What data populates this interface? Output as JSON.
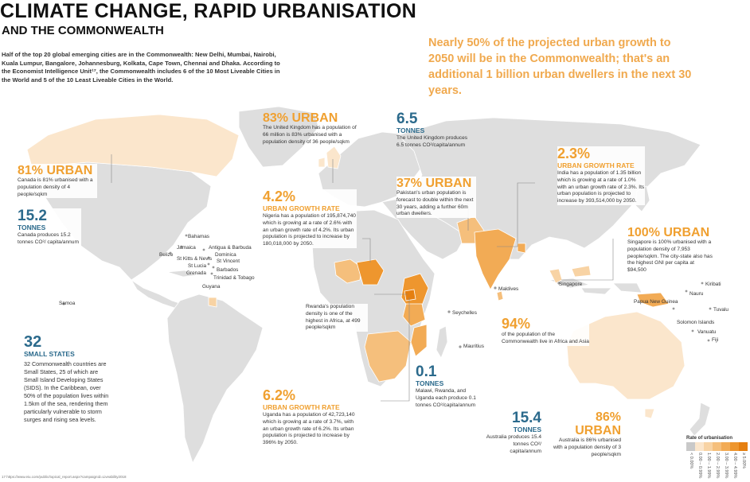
{
  "title": "CLIMATE CHANGE, RAPID URBANISATION",
  "subtitle": "AND THE COMMONWEALTH",
  "intro": "Half of the top 20 global emerging cities are in the Commonwealth: New Delhi, Mumbai, Nairobi, Kuala Lumpur, Bangalore, Johannesburg, Kolkata, Cape Town, Chennai and Dhaka. According to the Economist Intelligence Unit¹⁷, the Commonwealth includes 6 of the 10 Most Liveable Cities in the World and 5 of the 10 Least Liveable Cities in the World.",
  "headline": "Nearly 50% of the projected urban growth to 2050 will be in the Commonwealth; that's an additional 1 billion urban dwellers in the next 30 years.",
  "colors": {
    "map_land": "#dedede",
    "accent_orange": "#f0a030",
    "accent_blue": "#2b6a8c"
  },
  "callouts": {
    "uk_urban": {
      "value": "83% URBAN",
      "text": "The United Kingdom has a population of 66 million is 83% urbanised with a population density of 36 people/sqkm"
    },
    "uk_tonnes": {
      "value": "6.5",
      "label": "TONNES",
      "text": "The United Kingdom produces 6.5 tonnes CO²/capita/annum"
    },
    "canada_urban": {
      "value": "81% URBAN",
      "text": "Canada is 81% urbanised with a population density of 4 people/sqkm"
    },
    "canada_tonnes": {
      "value": "15.2",
      "label": "TONNES",
      "text": "Canada produces 15.2 tonnes CO²/ capita/annum"
    },
    "nigeria": {
      "value": "4.2%",
      "label": "URBAN GROWTH RATE",
      "text": "Nigeria has a population of 195,874,740 which is growing at a rate of 2.6% with an urban growth rate of 4.2%. Its urban population is projected to increase by 180,018,000 by 2050."
    },
    "pakistan": {
      "value": "37% URBAN",
      "text": "Pakistan's urban population is forecast to double within the next 30 years, adding a further 60m urban dwellers."
    },
    "india": {
      "value": "2.3%",
      "label": "URBAN GROWTH RATE",
      "text": "India has a population of 1.35 billion which is growing at a rate of 1.0% with an urban growth rate of 2.3%. Its urban population is projected to increase by 393,514,000 by 2050."
    },
    "singapore": {
      "value": "100% URBAN",
      "text": "Singapore is 100% urbanised with a population density of 7,953 people/sqkm. The city-state also has the highest GNI per capita at $94,500"
    },
    "rwanda": {
      "text": "Rwanda's population density is one of the highest in Africa, at 499 people/sqkm"
    },
    "small_states": {
      "value": "32",
      "label": "SMALL STATES",
      "text": "32 Commonwealth countries are Small States, 25 of which are Small Island Developing States (SIDS). In the Caribbean, over 50% of the population lives within 1.5km of the sea, rendering them particularly vulnerable to storm surges and rising sea levels."
    },
    "africa_asia": {
      "value": "94%",
      "text": "of the population of the Commonwealth live in Africa and Asia"
    },
    "uganda": {
      "value": "6.2%",
      "label": "URBAN GROWTH RATE",
      "text": "Uganda has a population of 42,723,140 which is growing at a rate of 3.7%, with an urban growth rate of 6.2%. Its urban population is projected to increase by 396% by 2050."
    },
    "malawi": {
      "value": "0.1",
      "label": "TONNES",
      "text": "Malawi, Rwanda, and Uganda each produce 0.1 tonnes CO²/capita/annum"
    },
    "australia_tonnes": {
      "value": "15.4",
      "label": "TONNES",
      "text": "Australia produces 15.4 tonnes CO²/ capita/annum"
    },
    "australia_urban": {
      "value": "86% URBAN",
      "text": "Australia is 86% urbanised with a population density of 3 people/sqkm"
    }
  },
  "places": {
    "bahamas": "Bahamas",
    "jamaica": "Jamaica",
    "belize": "Belize",
    "antigua": "Antigua & Barbuda",
    "dominica": "Dominica",
    "stkitts": "St Kitts & Nevis",
    "stvincent": "St Vincent",
    "stlucia": "St Lucia",
    "barbados": "Barbados",
    "grenada": "Grenada",
    "trinidad": "Trinidad & Tobago",
    "guyana": "Guyana",
    "samoa": "Samoa",
    "maldives": "Maldives",
    "seychelles": "Seychelles",
    "mauritius": "Mauritius",
    "singapore": "Singapore",
    "png": "Papua New Guinea",
    "nauru": "Nauru",
    "kiribati": "Kiribati",
    "tuvalu": "Tuvalu",
    "solomon": "Solomon Islands",
    "vanuatu": "Vanuatu",
    "fiji": "Fiji"
  },
  "legend": {
    "title": "Rate of urbanisation",
    "items": [
      {
        "label": "< 0.00%",
        "color": "#c9c9c9"
      },
      {
        "label": "0.00 – 0.99%",
        "color": "#fbe6cc"
      },
      {
        "label": "1.00 – 1.99%",
        "color": "#f8d3a4"
      },
      {
        "label": "2.00 – 2.99%",
        "color": "#f5bf7c"
      },
      {
        "label": "3.00 – 3.99%",
        "color": "#f2ab55"
      },
      {
        "label": "4.00 – 4.99%",
        "color": "#ee962e"
      },
      {
        "label": "≥ 5.00%",
        "color": "#e57f10"
      }
    ]
  },
  "footer": "17  https://www.eiu.com/public/topical_report.aspx?campaignid=Liveability2018"
}
